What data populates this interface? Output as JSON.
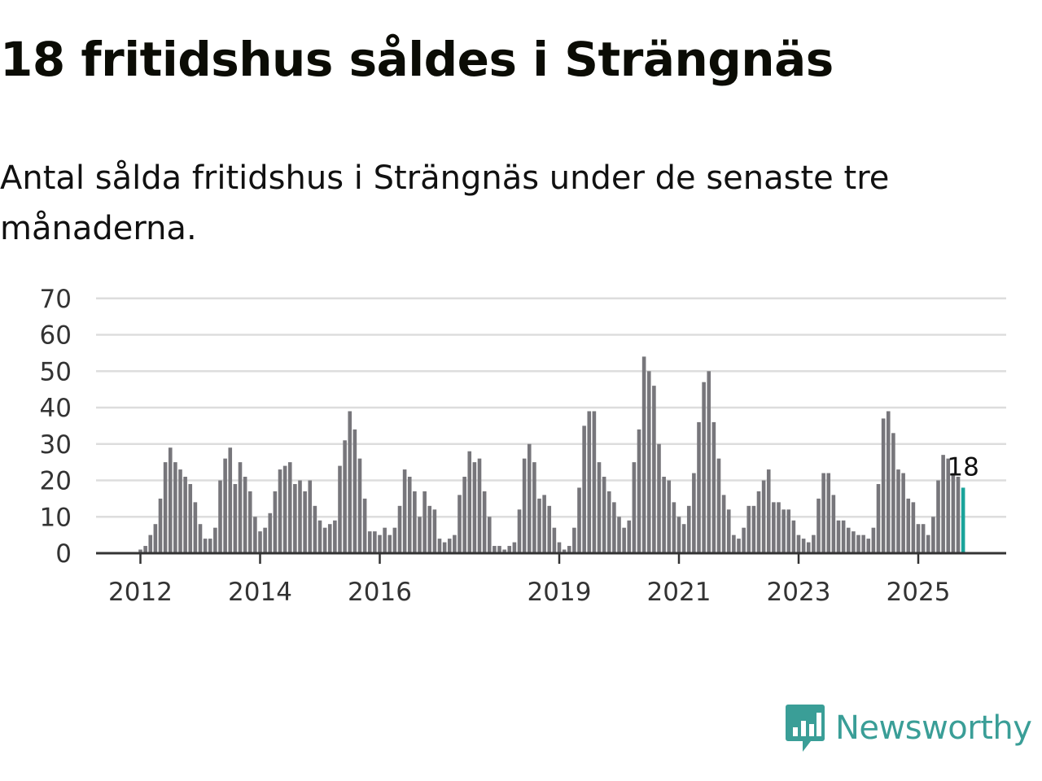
{
  "header": {
    "title": "18 fritidshus såldes i Strängnäs",
    "subtitle": "Antal sålda fritidshus i Strängnäs under de senaste tre månaderna."
  },
  "brand": {
    "name": "Newsworthy",
    "logo_icon": "chart-speech-bubble-icon",
    "color": "#3a9e97"
  },
  "colors": {
    "bar": "#77767b",
    "highlight": "#1aa39a",
    "grid": "#dddddd",
    "axis": "#333333"
  },
  "chart_data": {
    "type": "bar",
    "title": "18 fritidshus såldes i Strängnäs",
    "subtitle": "Antal sålda fritidshus i Strängnäs under de senaste tre månaderna.",
    "xlabel": "",
    "ylabel": "",
    "ylim": [
      0,
      70
    ],
    "yticks": [
      0,
      10,
      20,
      30,
      40,
      50,
      60,
      70
    ],
    "grid": true,
    "x_start": "2012-01",
    "frequency": "monthly",
    "xtick_labels": [
      {
        "label": "2012",
        "index": 0
      },
      {
        "label": "2014",
        "index": 24
      },
      {
        "label": "2016",
        "index": 48
      },
      {
        "label": "2019",
        "index": 84
      },
      {
        "label": "2021",
        "index": 108
      },
      {
        "label": "2023",
        "index": 132
      },
      {
        "label": "2025",
        "index": 156
      }
    ],
    "highlight": {
      "index": 165,
      "label": "18"
    },
    "values": [
      1,
      2,
      5,
      8,
      15,
      25,
      29,
      25,
      23,
      21,
      19,
      14,
      8,
      4,
      4,
      7,
      20,
      26,
      29,
      19,
      25,
      21,
      17,
      10,
      6,
      7,
      11,
      17,
      23,
      24,
      25,
      19,
      20,
      17,
      20,
      13,
      9,
      7,
      8,
      9,
      24,
      31,
      39,
      34,
      26,
      15,
      6,
      6,
      5,
      7,
      5,
      7,
      13,
      23,
      21,
      17,
      10,
      17,
      13,
      12,
      4,
      3,
      4,
      5,
      16,
      21,
      28,
      25,
      26,
      17,
      10,
      2,
      2,
      1,
      2,
      3,
      12,
      26,
      30,
      25,
      15,
      16,
      13,
      7,
      3,
      1,
      2,
      7,
      18,
      35,
      39,
      39,
      25,
      21,
      17,
      14,
      10,
      7,
      9,
      25,
      34,
      54,
      50,
      46,
      30,
      21,
      20,
      14,
      10,
      8,
      13,
      22,
      36,
      47,
      50,
      36,
      26,
      16,
      12,
      5,
      4,
      7,
      13,
      13,
      17,
      20,
      23,
      14,
      14,
      12,
      12,
      9,
      5,
      4,
      3,
      5,
      15,
      22,
      22,
      16,
      9,
      9,
      7,
      6,
      5,
      5,
      4,
      7,
      19,
      37,
      39,
      33,
      23,
      22,
      15,
      14,
      8,
      8,
      5,
      10,
      20,
      27,
      26,
      22,
      21,
      18
    ]
  }
}
